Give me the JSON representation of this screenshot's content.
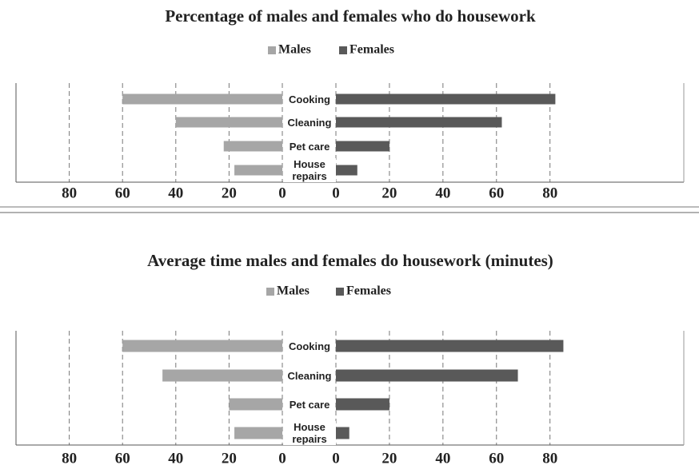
{
  "chart_data": [
    {
      "type": "butterfly",
      "title": "Percentage of males and females who do housework",
      "categories": [
        "Cooking",
        "Cleaning",
        "Pet care",
        "House repairs"
      ],
      "series": [
        {
          "name": "Males",
          "color": "#a6a6a6",
          "values": [
            60,
            40,
            22,
            18
          ],
          "xlim": [
            100,
            0
          ],
          "xticks": [
            80,
            60,
            40,
            20,
            0
          ]
        },
        {
          "name": "Females",
          "color": "#595959",
          "values": [
            82,
            62,
            20,
            8
          ],
          "xlim": [
            0,
            130
          ],
          "xticks": [
            0,
            20,
            40,
            60,
            80
          ]
        }
      ],
      "grid": true
    },
    {
      "type": "butterfly",
      "title": "Average time males and females do housework (minutes)",
      "categories": [
        "Cooking",
        "Cleaning",
        "Pet care",
        "House repairs"
      ],
      "series": [
        {
          "name": "Males",
          "color": "#a6a6a6",
          "values": [
            60,
            45,
            20,
            18
          ],
          "xlim": [
            100,
            0
          ],
          "xticks": [
            80,
            60,
            40,
            20,
            0
          ]
        },
        {
          "name": "Females",
          "color": "#595959",
          "values": [
            85,
            68,
            20,
            5
          ],
          "xlim": [
            0,
            130
          ],
          "xticks": [
            0,
            20,
            40,
            60,
            80
          ]
        }
      ],
      "grid": true
    }
  ]
}
